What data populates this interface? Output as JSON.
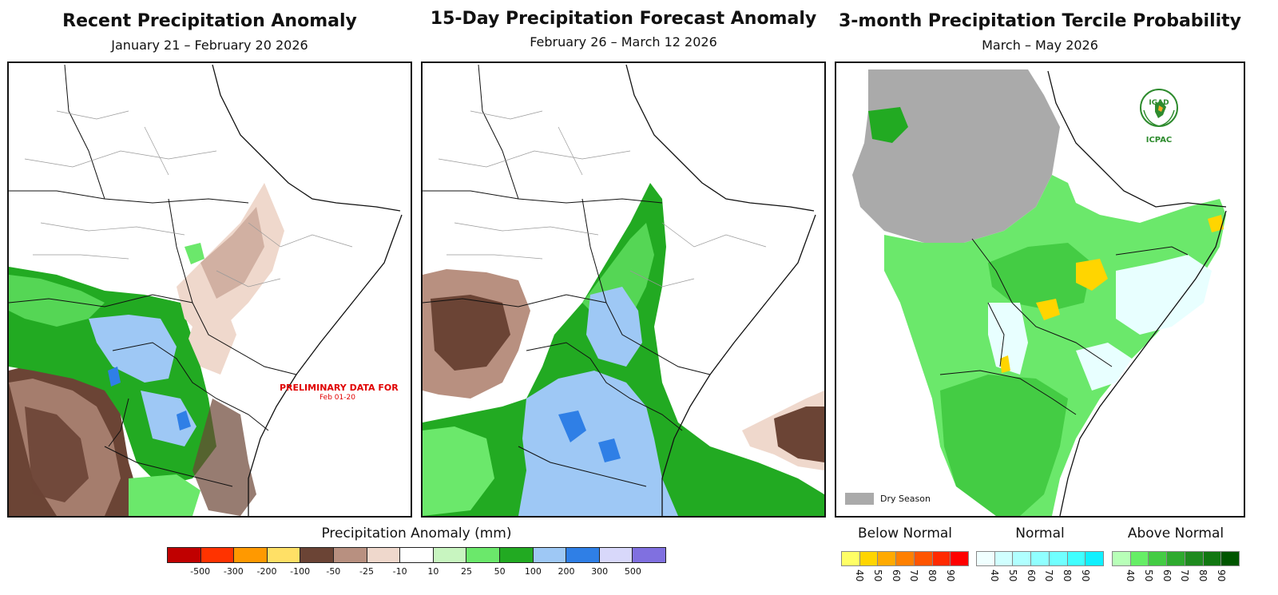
{
  "panels": [
    {
      "title": "Recent Precipitation Anomaly",
      "subtitle": "January 21 – February 20 2026"
    },
    {
      "title": "15-Day Precipitation Forecast Anomaly",
      "subtitle": "February 26 – March 12 2026"
    },
    {
      "title": "3-month Precipitation Tercile Probability",
      "subtitle": "March – May 2026"
    }
  ],
  "preliminary": {
    "line1": "PRELIMINARY DATA FOR",
    "line2": "Feb 01-20"
  },
  "anomaly_legend": {
    "title": "Precipitation Anomaly (mm)",
    "colors": [
      "#c00000",
      "#ff3300",
      "#ff9900",
      "#ffe066",
      "#6b4435",
      "#b89080",
      "#efd8cc",
      "#ffffff",
      "#c8f5c0",
      "#6be86b",
      "#22aa22",
      "#9ec8f5",
      "#2f7fe6",
      "#d8d8fa",
      "#8070e0"
    ],
    "ticks": [
      "-500",
      "-300",
      "-200",
      "-100",
      "-50",
      "-25",
      "-10",
      "10",
      "25",
      "50",
      "100",
      "200",
      "300",
      "500"
    ]
  },
  "tercile_legend": {
    "groups": [
      {
        "label": "Below Normal",
        "colors": [
          "#ffff66",
          "#ffd500",
          "#ffaa00",
          "#ff8000",
          "#ff5500",
          "#ff2a00",
          "#ff0000"
        ],
        "ticks": [
          "40",
          "50",
          "60",
          "70",
          "80",
          "90"
        ]
      },
      {
        "label": "Normal",
        "colors": [
          "#f0ffff",
          "#d0ffff",
          "#b0ffff",
          "#90ffff",
          "#70ffff",
          "#40ffff",
          "#10f0ff"
        ],
        "ticks": [
          "40",
          "50",
          "60",
          "70",
          "80",
          "90"
        ]
      },
      {
        "label": "Above Normal",
        "colors": [
          "#b8ffb8",
          "#66ee66",
          "#44cc44",
          "#2eaa2e",
          "#1f8a1f",
          "#117711",
          "#005500"
        ],
        "ticks": [
          "40",
          "50",
          "60",
          "70",
          "80",
          "90"
        ]
      }
    ]
  },
  "logo": {
    "top_text": "IGAD",
    "bottom_text": "ICPAC",
    "color": "#2e8b2e"
  },
  "dry_season": {
    "label": "Dry Season",
    "color": "#aaaaaa"
  }
}
